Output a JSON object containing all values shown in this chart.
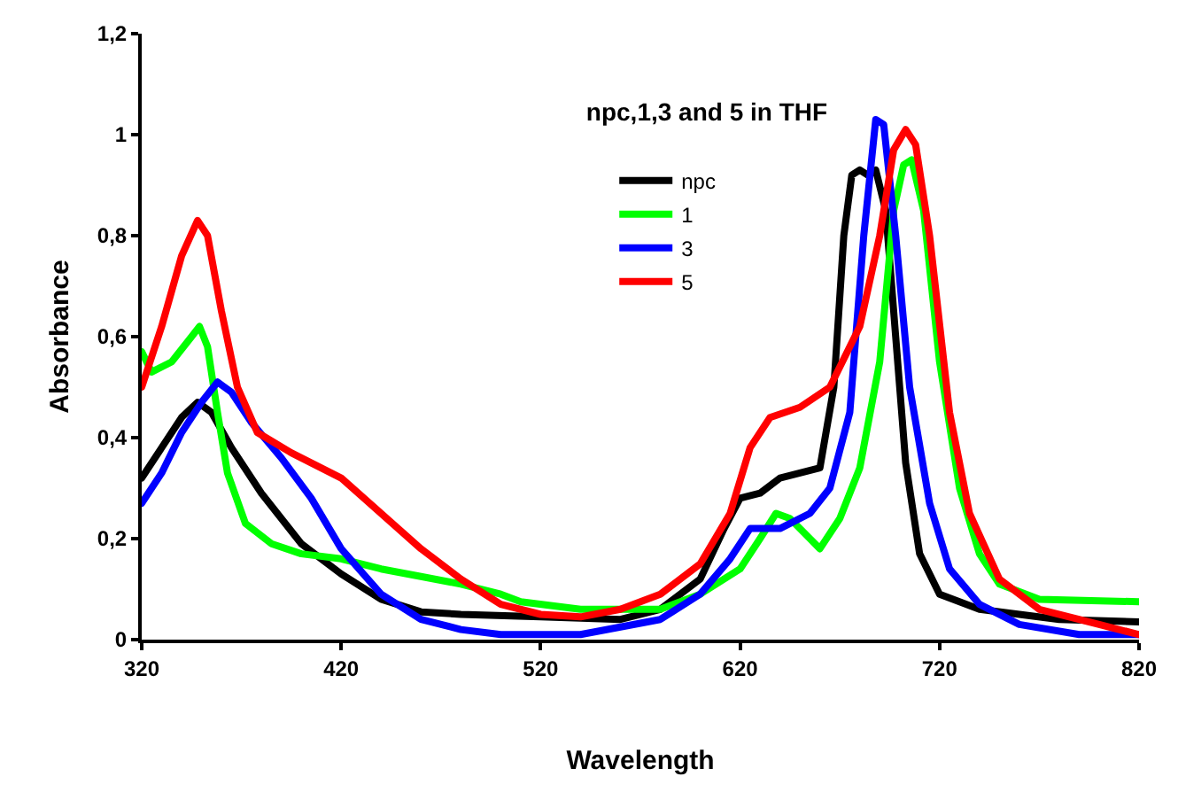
{
  "chart_data": {
    "type": "line",
    "title": "npc,1,3 and 5 in THF",
    "xlabel": "Wavelength",
    "ylabel": "Absorbance",
    "xlim": [
      320,
      820
    ],
    "ylim": [
      0,
      1.2
    ],
    "xticks": [
      320,
      420,
      520,
      620,
      720,
      820
    ],
    "yticks": [
      {
        "value": 0,
        "label": "0"
      },
      {
        "value": 0.2,
        "label": "0,2"
      },
      {
        "value": 0.4,
        "label": "0,4"
      },
      {
        "value": 0.6,
        "label": "0,6"
      },
      {
        "value": 0.8,
        "label": "0,8"
      },
      {
        "value": 1,
        "label": "1"
      },
      {
        "value": 1.2,
        "label": "1,2"
      }
    ],
    "legend": "top",
    "marker": "none",
    "line_style": "solid",
    "series": [
      {
        "name": "npc",
        "color": "#000000",
        "x": [
          320,
          330,
          340,
          348,
          355,
          365,
          380,
          400,
          420,
          440,
          460,
          480,
          520,
          560,
          580,
          600,
          612,
          620,
          630,
          640,
          650,
          660,
          667,
          672,
          676,
          680,
          684,
          688,
          693,
          698,
          703,
          710,
          720,
          740,
          780,
          820
        ],
        "values": [
          0.32,
          0.38,
          0.44,
          0.47,
          0.45,
          0.38,
          0.29,
          0.19,
          0.13,
          0.08,
          0.055,
          0.05,
          0.045,
          0.04,
          0.06,
          0.12,
          0.22,
          0.28,
          0.29,
          0.32,
          0.33,
          0.34,
          0.5,
          0.8,
          0.92,
          0.93,
          0.92,
          0.93,
          0.85,
          0.6,
          0.35,
          0.17,
          0.09,
          0.06,
          0.04,
          0.035
        ]
      },
      {
        "name": "1",
        "color": "#00ff00",
        "x": [
          320,
          325,
          335,
          345,
          349,
          353,
          358,
          363,
          372,
          385,
          400,
          420,
          440,
          460,
          480,
          500,
          510,
          540,
          580,
          600,
          620,
          630,
          638,
          645,
          655,
          660,
          670,
          680,
          690,
          697,
          702,
          706,
          712,
          720,
          730,
          740,
          750,
          770,
          820
        ],
        "values": [
          0.57,
          0.53,
          0.55,
          0.6,
          0.62,
          0.58,
          0.45,
          0.33,
          0.23,
          0.19,
          0.17,
          0.16,
          0.14,
          0.125,
          0.11,
          0.09,
          0.075,
          0.06,
          0.06,
          0.09,
          0.14,
          0.2,
          0.25,
          0.24,
          0.2,
          0.18,
          0.24,
          0.34,
          0.55,
          0.85,
          0.94,
          0.95,
          0.85,
          0.55,
          0.3,
          0.17,
          0.11,
          0.08,
          0.075
        ]
      },
      {
        "name": "3",
        "color": "#0000ff",
        "x": [
          320,
          330,
          340,
          350,
          358,
          365,
          375,
          390,
          405,
          420,
          440,
          460,
          480,
          500,
          540,
          580,
          600,
          615,
          625,
          640,
          655,
          665,
          675,
          682,
          688,
          692,
          698,
          705,
          715,
          725,
          740,
          760,
          790,
          820
        ],
        "values": [
          0.27,
          0.33,
          0.41,
          0.47,
          0.51,
          0.49,
          0.43,
          0.36,
          0.28,
          0.18,
          0.09,
          0.04,
          0.02,
          0.01,
          0.01,
          0.04,
          0.09,
          0.16,
          0.22,
          0.22,
          0.25,
          0.3,
          0.45,
          0.8,
          1.03,
          1.02,
          0.8,
          0.5,
          0.27,
          0.14,
          0.07,
          0.03,
          0.01,
          0.01
        ]
      },
      {
        "name": "5",
        "color": "#ff0000",
        "x": [
          320,
          330,
          340,
          348,
          353,
          360,
          368,
          378,
          395,
          420,
          440,
          460,
          480,
          500,
          520,
          540,
          560,
          580,
          600,
          615,
          625,
          635,
          650,
          665,
          680,
          690,
          697,
          703,
          708,
          715,
          725,
          735,
          750,
          770,
          800,
          820
        ],
        "values": [
          0.5,
          0.62,
          0.76,
          0.83,
          0.8,
          0.65,
          0.5,
          0.41,
          0.37,
          0.32,
          0.25,
          0.18,
          0.12,
          0.07,
          0.05,
          0.045,
          0.06,
          0.09,
          0.15,
          0.25,
          0.38,
          0.44,
          0.46,
          0.5,
          0.62,
          0.8,
          0.97,
          1.01,
          0.98,
          0.8,
          0.45,
          0.25,
          0.12,
          0.06,
          0.03,
          0.01
        ]
      }
    ]
  }
}
